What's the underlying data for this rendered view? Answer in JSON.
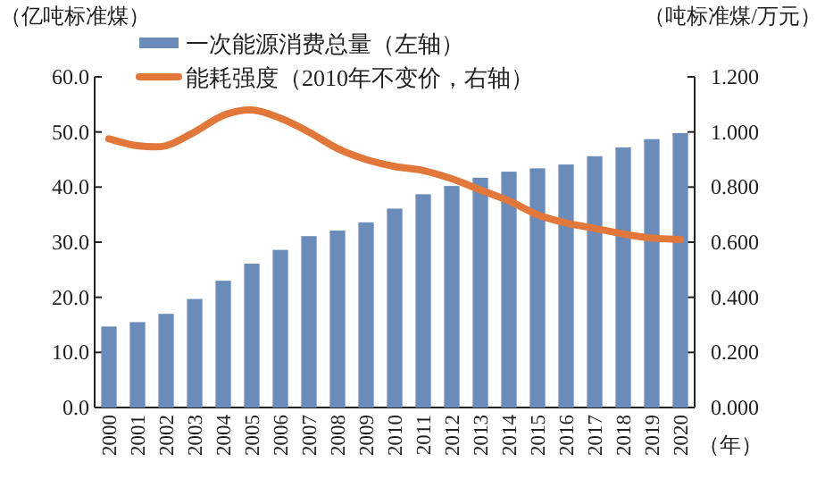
{
  "chart_data": {
    "type": "bar",
    "categories": [
      "2000",
      "2001",
      "2002",
      "2003",
      "2004",
      "2005",
      "2006",
      "2007",
      "2008",
      "2009",
      "2010",
      "2011",
      "2012",
      "2013",
      "2014",
      "2015",
      "2016",
      "2017",
      "2018",
      "2019",
      "2020"
    ],
    "series": [
      {
        "name": "一次能源消费总量（左轴）",
        "color": "#6b8cba",
        "values": [
          14.7,
          15.5,
          17.0,
          19.7,
          23.0,
          26.1,
          28.6,
          31.1,
          32.1,
          33.6,
          36.1,
          38.7,
          40.2,
          41.7,
          42.8,
          43.4,
          44.1,
          45.6,
          47.2,
          48.7,
          49.8
        ]
      },
      {
        "name": "能耗强度（2010年不变价，右轴）",
        "type": "line",
        "axis": "y2",
        "color": "#e2773b",
        "values": [
          0.975,
          0.95,
          0.95,
          1.0,
          1.06,
          1.08,
          1.05,
          1.0,
          0.94,
          0.9,
          0.875,
          0.86,
          0.83,
          0.79,
          0.75,
          0.7,
          0.67,
          0.65,
          0.63,
          0.615,
          0.61
        ]
      }
    ],
    "xlabel": "（年）",
    "ylabel": "（亿吨标准煤）",
    "y2label": "（吨标准煤/万元）",
    "ylim": [
      0,
      60
    ],
    "yticks": [
      {
        "value": 0,
        "label": "0.0"
      },
      {
        "value": 10,
        "label": "10.0"
      },
      {
        "value": 20,
        "label": "20.0"
      },
      {
        "value": 30,
        "label": "30.0"
      },
      {
        "value": 40,
        "label": "40.0"
      },
      {
        "value": 50,
        "label": "50.0"
      },
      {
        "value": 60,
        "label": "60.0"
      }
    ],
    "y2lim": [
      0,
      1.2
    ],
    "y2ticks": [
      {
        "value": 0,
        "label": "0.000"
      },
      {
        "value": 0.2,
        "label": "0.200"
      },
      {
        "value": 0.4,
        "label": "0.400"
      },
      {
        "value": 0.6,
        "label": "0.600"
      },
      {
        "value": 0.8,
        "label": "0.800"
      },
      {
        "value": 1,
        "label": "1.000"
      },
      {
        "value": 1.2,
        "label": "1.200"
      }
    ],
    "legend": "top left",
    "grid": false
  }
}
